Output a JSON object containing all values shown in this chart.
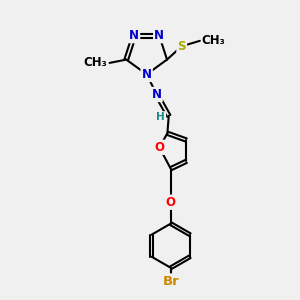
{
  "bg_color": "#f0f0f0",
  "bond_color": "#000000",
  "bond_width": 1.5,
  "atom_colors": {
    "N": "#0000cc",
    "O": "#ff0000",
    "S": "#aaaa00",
    "Br": "#cc8800",
    "C": "#000000",
    "H": "#228888"
  },
  "font_size": 8.5,
  "fig_size": [
    3.0,
    3.0
  ],
  "dpi": 100,
  "xlim": [
    -1.0,
    1.4
  ],
  "ylim": [
    -2.8,
    1.6
  ]
}
